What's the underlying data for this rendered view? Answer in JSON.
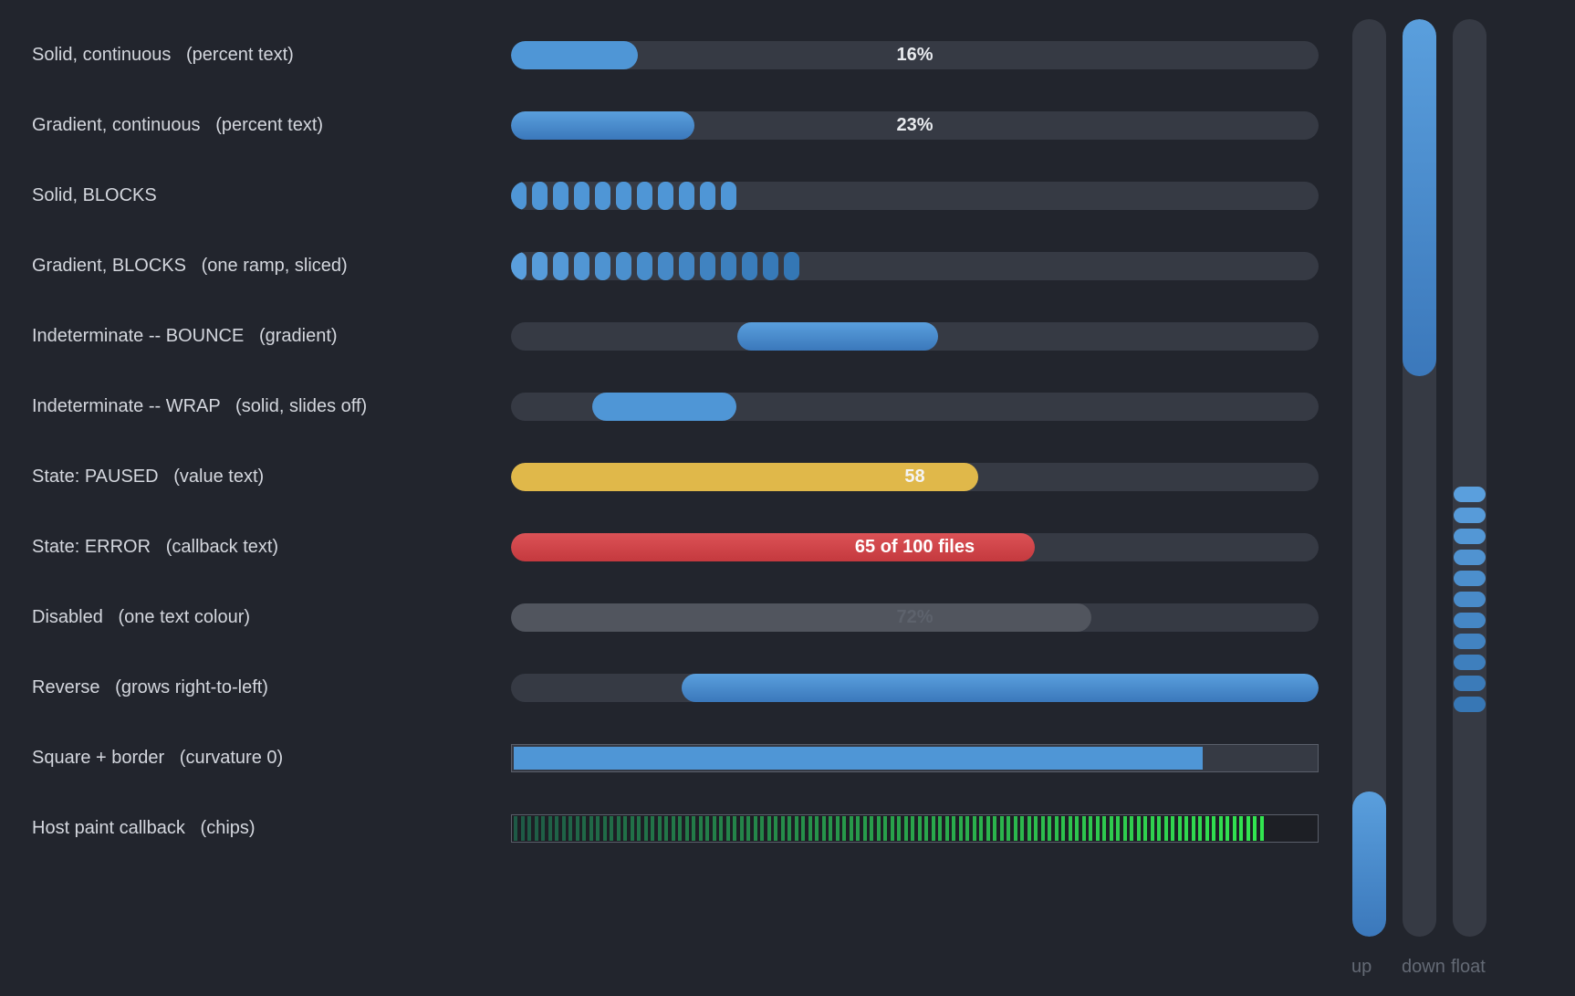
{
  "rows": [
    {
      "label": "Solid, continuous",
      "note": "(percent text)",
      "value": 16,
      "text": "16%"
    },
    {
      "label": "Gradient, continuous",
      "note": "(percent text)",
      "value": 23,
      "text": "23%"
    },
    {
      "label": "Solid, BLOCKS",
      "note": "",
      "value": 28
    },
    {
      "label": "Gradient, BLOCKS",
      "note": "(one ramp, sliced)",
      "value": 36
    },
    {
      "label": "Indeterminate -- BOUNCE",
      "note": "(gradient)"
    },
    {
      "label": "Indeterminate -- WRAP",
      "note": "(solid, slides off)"
    },
    {
      "label": "State: PAUSED",
      "note": "(value text)",
      "value": 58,
      "text": "58"
    },
    {
      "label": "State: ERROR",
      "note": "(callback text)",
      "value": 65,
      "text": "65 of 100 files"
    },
    {
      "label": "Disabled",
      "note": "(one text colour)",
      "value": 72,
      "text": "72%"
    },
    {
      "label": "Reverse",
      "note": "(grows right-to-left)",
      "value": 79
    },
    {
      "label": "Square + border",
      "note": "(curvature 0)",
      "value": 86
    },
    {
      "label": "Host paint callback",
      "note": "(chips)",
      "value": 93
    }
  ],
  "vertical": {
    "up_label": "up",
    "down_label": "down",
    "float_label": "float",
    "up_value": 16,
    "down_value": 39
  },
  "colors": {
    "accent": "#4f96d6",
    "paused": "#e0b84a",
    "error": "#d44a4f",
    "disabled": "#51555e",
    "chips": "#27c44f"
  }
}
